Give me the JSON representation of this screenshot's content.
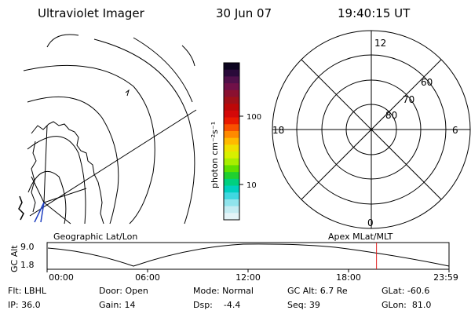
{
  "header": {
    "title": "Ultraviolet Imager",
    "date": "30 Jun 07",
    "time": "19:40:15 UT"
  },
  "colorbar": {
    "label": "photon cm⁻²s⁻¹",
    "ticks": [
      {
        "label": "100",
        "value": 100
      },
      {
        "label": "10",
        "value": 10
      }
    ],
    "colors": [
      "#0d0520",
      "#2a0a3a",
      "#50104a",
      "#701048",
      "#8a1030",
      "#a01018",
      "#bc0808",
      "#d40808",
      "#ea1a00",
      "#f85000",
      "#ff8a00",
      "#ffba00",
      "#f0e000",
      "#d8f000",
      "#a8ee00",
      "#60e000",
      "#20d030",
      "#00d080",
      "#00d0c0",
      "#40d8e0",
      "#90e4ec",
      "#c4ecf2",
      "#e4f4f8"
    ]
  },
  "polar_plot": {
    "clock_labels": {
      "top": "12",
      "left": "18",
      "right": "6",
      "bottom": "0"
    },
    "lat_labels": [
      "60",
      "70",
      "80"
    ]
  },
  "timeline": {
    "left_label": "Geographic Lat/Lon",
    "right_label": "Apex MLat/MLT",
    "y_axis_label": "GC Alt",
    "y_ticks": [
      "9.0",
      "1.8"
    ],
    "x_ticks": [
      "00:00",
      "06:00",
      "12:00",
      "18:00",
      "23:59"
    ],
    "current_time_hours": 19.67,
    "marker_color": "#e02020"
  },
  "status": {
    "flt": "Flt: LBHL",
    "door": "Door: Open",
    "mode": "Mode: Normal",
    "gc_alt": "GC Alt: 6.7 Re",
    "glat": "GLat: -60.6",
    "ip": "IP: 36.0",
    "gain": "Gain: 14",
    "dsp": "Dsp:    -4.4",
    "seq": "Seq: 39",
    "glon": "GLon:  81.0"
  }
}
